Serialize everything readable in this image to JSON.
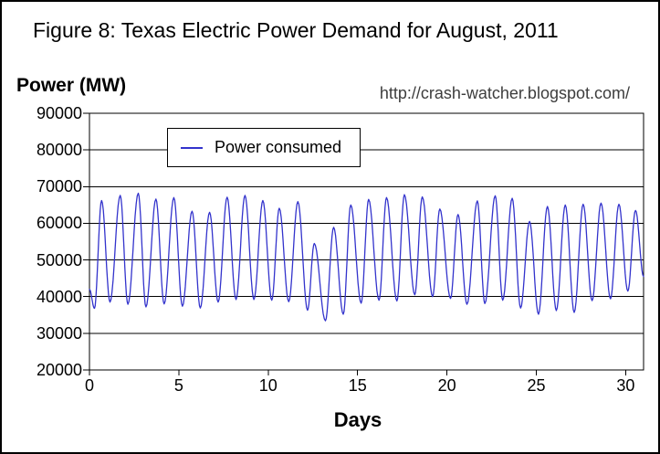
{
  "header": {
    "title": "Figure 8: Texas Electric Power Demand for August, 2011",
    "url": "http://crash-watcher.blogspot.com/"
  },
  "chart_data": {
    "type": "line",
    "title": "Figure 8: Texas Electric Power Demand for August, 2011",
    "xlabel": "Days",
    "ylabel": "Power (MW)",
    "watermark": "http://crash-watcher.blogspot.com/",
    "xlim": [
      0,
      31
    ],
    "ylim": [
      20000,
      90000
    ],
    "x_ticks": [
      0,
      5,
      10,
      15,
      20,
      25,
      30
    ],
    "y_ticks": [
      20000,
      30000,
      40000,
      50000,
      60000,
      70000,
      80000,
      90000
    ],
    "grid": "horizontal gridlines at every 10000 MW, plot area boxed",
    "legend": {
      "label": "Power consumed",
      "position": "top-left-inside"
    },
    "series": [
      {
        "name": "Power consumed",
        "color": "#3333cc",
        "sampling": "daily trough/peak extremes in MW for August 1-31; curve oscillates smoothly between consecutive extremes",
        "points": [
          [
            0.0,
            42000
          ],
          [
            0.28,
            36800
          ],
          [
            0.68,
            66200
          ],
          [
            1.15,
            38500
          ],
          [
            1.72,
            67600
          ],
          [
            2.15,
            37900
          ],
          [
            2.73,
            68200
          ],
          [
            3.16,
            37200
          ],
          [
            3.72,
            66600
          ],
          [
            4.18,
            38000
          ],
          [
            4.72,
            67000
          ],
          [
            5.2,
            37400
          ],
          [
            5.74,
            63300
          ],
          [
            6.2,
            36900
          ],
          [
            6.72,
            63000
          ],
          [
            7.2,
            38500
          ],
          [
            7.7,
            67100
          ],
          [
            8.2,
            39200
          ],
          [
            8.7,
            67600
          ],
          [
            9.2,
            39200
          ],
          [
            9.7,
            66200
          ],
          [
            10.2,
            39000
          ],
          [
            10.62,
            64100
          ],
          [
            11.15,
            38600
          ],
          [
            11.66,
            65900
          ],
          [
            12.2,
            36300
          ],
          [
            12.58,
            54500
          ],
          [
            13.2,
            33400
          ],
          [
            13.66,
            58900
          ],
          [
            14.2,
            35200
          ],
          [
            14.62,
            65000
          ],
          [
            15.2,
            38200
          ],
          [
            15.62,
            66500
          ],
          [
            16.2,
            39000
          ],
          [
            16.62,
            67000
          ],
          [
            17.2,
            38800
          ],
          [
            17.62,
            67800
          ],
          [
            18.2,
            40500
          ],
          [
            18.62,
            67200
          ],
          [
            19.2,
            40000
          ],
          [
            19.6,
            63900
          ],
          [
            20.2,
            39500
          ],
          [
            20.62,
            62400
          ],
          [
            21.12,
            37900
          ],
          [
            21.7,
            66100
          ],
          [
            22.12,
            38100
          ],
          [
            22.7,
            67500
          ],
          [
            23.12,
            39000
          ],
          [
            23.65,
            66800
          ],
          [
            24.12,
            36900
          ],
          [
            24.62,
            60500
          ],
          [
            25.12,
            35200
          ],
          [
            25.62,
            64600
          ],
          [
            26.12,
            36200
          ],
          [
            26.62,
            65000
          ],
          [
            27.12,
            35700
          ],
          [
            27.62,
            65200
          ],
          [
            28.12,
            38900
          ],
          [
            28.62,
            65500
          ],
          [
            29.15,
            39400
          ],
          [
            29.62,
            65200
          ],
          [
            30.12,
            41500
          ],
          [
            30.55,
            63500
          ],
          [
            31.0,
            45500
          ]
        ]
      }
    ]
  },
  "colors": {
    "line": "#3333cc",
    "axis": "#000000",
    "url_text": "#3d3d3d",
    "background": "#ffffff"
  }
}
